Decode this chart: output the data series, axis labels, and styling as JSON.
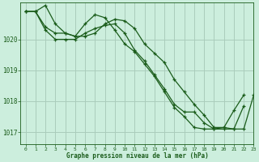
{
  "title": "Graphe pression niveau de la mer (hPa)",
  "bg_color": "#cceedd",
  "grid_color": "#aaccbb",
  "line_color": "#1a5c1a",
  "xlim": [
    -0.5,
    23
  ],
  "ylim": [
    1016.6,
    1021.2
  ],
  "yticks": [
    1017,
    1018,
    1019,
    1020
  ],
  "xticks": [
    0,
    1,
    2,
    3,
    4,
    5,
    6,
    7,
    8,
    9,
    10,
    11,
    12,
    13,
    14,
    15,
    16,
    17,
    18,
    19,
    20,
    21,
    22,
    23
  ],
  "series": [
    [
      1020.9,
      1020.9,
      1021.1,
      1020.5,
      1020.2,
      1020.1,
      1020.5,
      1020.8,
      1020.7,
      1020.3,
      1019.85,
      1019.6,
      1019.2,
      1018.8,
      1018.3,
      1017.8,
      1017.5,
      1017.15,
      1017.1,
      1017.1,
      1017.15,
      1017.1,
      1017.1,
      1018.2
    ],
    [
      1020.9,
      1020.9,
      1020.4,
      1020.2,
      1020.2,
      1020.1,
      1020.1,
      1020.2,
      1020.5,
      1020.65,
      1020.6,
      1020.35,
      1019.85,
      1019.55,
      1019.25,
      1018.7,
      1018.3,
      1017.9,
      1017.55,
      1017.15,
      1017.15,
      1017.7,
      1018.2,
      null
    ],
    [
      1020.9,
      1020.9,
      1020.3,
      1020.0,
      1020.0,
      1020.0,
      1020.2,
      1020.35,
      1020.45,
      1020.5,
      1020.2,
      1019.65,
      1019.3,
      1018.85,
      1018.4,
      1017.9,
      1017.65,
      1017.65,
      1017.3,
      1017.1,
      1017.1,
      1017.1,
      1017.85,
      null
    ]
  ]
}
